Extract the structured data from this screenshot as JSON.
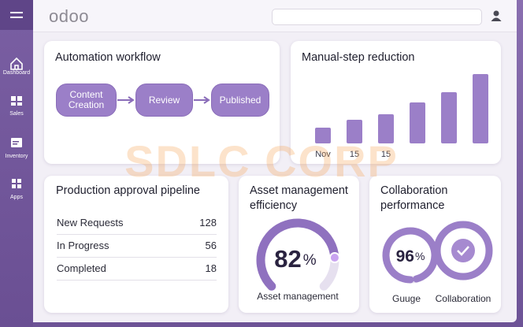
{
  "sidebar": {
    "items": [
      "Dashboard",
      "Sales",
      "Inventory",
      "Apps"
    ]
  },
  "header": {
    "logo": "odoo"
  },
  "automation_workflow": {
    "title": "Automation workflow",
    "steps": [
      "Content Creation",
      "Review",
      "Published"
    ]
  },
  "chart_data": {
    "type": "bar",
    "title": "Manual-step reduction",
    "categories": [
      "Nov",
      "15",
      "15",
      null,
      null,
      null
    ],
    "values": [
      20,
      30,
      37,
      52,
      65,
      88
    ],
    "color": "#9b7fc8"
  },
  "pipeline": {
    "title": "Production approval pipeline",
    "rows": [
      [
        "New Requests",
        128
      ],
      [
        "In Progress",
        56
      ],
      [
        "Completed",
        18
      ]
    ]
  },
  "asset_efficiency": {
    "title": "Asset management efficiency",
    "value": 82,
    "unit": "%",
    "label": "Asset management"
  },
  "collaboration": {
    "title": "Collaboration performance",
    "value": 96,
    "unit": "%",
    "labels": [
      "Guuge",
      "Collaboration"
    ]
  },
  "watermark": "SDLC CORP"
}
